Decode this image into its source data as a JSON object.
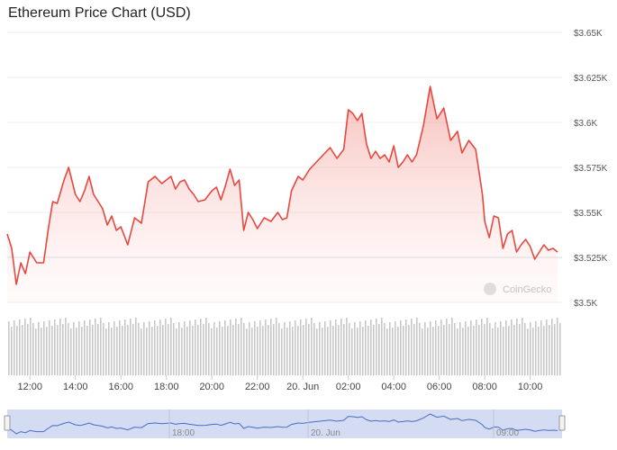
{
  "chart_data": {
    "type": "line",
    "title": "Ethereum Price Chart (USD)",
    "watermark": "CoinGecko",
    "y_ticks": [
      "$3.65K",
      "$3.625K",
      "$3.6K",
      "$3.575K",
      "$3.55K",
      "$3.525K",
      "$3.5K"
    ],
    "y_tick_values": [
      3650,
      3625,
      3600,
      3575,
      3550,
      3525,
      3500
    ],
    "ylim": [
      3500,
      3650
    ],
    "x_ticks": [
      "12:00",
      "14:00",
      "16:00",
      "18:00",
      "20:00",
      "22:00",
      "20. Jun",
      "02:00",
      "04:00",
      "06:00",
      "08:00",
      "10:00"
    ],
    "x_tick_hours": [
      0,
      2,
      4,
      6,
      8,
      10,
      12,
      14,
      16,
      18,
      20,
      22
    ],
    "xlim_hours": [
      -1,
      23.4
    ],
    "baseline": 3525,
    "line_color": "#e8473f",
    "volume_color": "#c8c8c8",
    "navigator_ticks": [
      "18:00",
      "20. Jun",
      "09:00"
    ],
    "navigator_line_color": "#4a6cc3",
    "navigator_bg": "#d3dcf2",
    "series": [
      {
        "x": [
          -1.0,
          -0.8,
          -0.6,
          -0.4,
          -0.2,
          0.0,
          0.3,
          0.6,
          0.8,
          1.0,
          1.2,
          1.5,
          1.7,
          2.0,
          2.2,
          2.4,
          2.6,
          2.8,
          3.0,
          3.2,
          3.4,
          3.6,
          3.8,
          4.0,
          4.3,
          4.6,
          4.9,
          5.2,
          5.5,
          5.8,
          6.0,
          6.2,
          6.4,
          6.6,
          6.8,
          7.0,
          7.2,
          7.4,
          7.7,
          8.0,
          8.2,
          8.4,
          8.6,
          8.8,
          9.0,
          9.2,
          9.4,
          9.6,
          9.8,
          10.0,
          10.3,
          10.6,
          10.9,
          11.1,
          11.3,
          11.5,
          11.8,
          12.0,
          12.3,
          12.6,
          12.9,
          13.2,
          13.5,
          13.8,
          14.0,
          14.2,
          14.4,
          14.6,
          14.8,
          15.0,
          15.2,
          15.4,
          15.6,
          15.8,
          16.0,
          16.2,
          16.4,
          16.6,
          16.8,
          17.0,
          17.3,
          17.6,
          17.9,
          18.2,
          18.5,
          18.8,
          19.0,
          19.3,
          19.6,
          19.9,
          20.0,
          20.2,
          20.4,
          20.6,
          20.8,
          21.0,
          21.2,
          21.4,
          21.6,
          21.8,
          22.0,
          22.2,
          22.4,
          22.6,
          22.8,
          23.0,
          23.2
        ],
        "y": [
          3538,
          3530,
          3510,
          3522,
          3516,
          3528,
          3522,
          3522,
          3540,
          3556,
          3555,
          3568,
          3575,
          3560,
          3556,
          3562,
          3570,
          3560,
          3556,
          3552,
          3543,
          3548,
          3540,
          3542,
          3532,
          3547,
          3544,
          3567,
          3570,
          3566,
          3568,
          3570,
          3563,
          3567,
          3568,
          3563,
          3560,
          3556,
          3557,
          3562,
          3564,
          3557,
          3565,
          3574,
          3565,
          3568,
          3540,
          3550,
          3546,
          3541,
          3547,
          3545,
          3550,
          3546,
          3547,
          3562,
          3570,
          3568,
          3574,
          3578,
          3582,
          3586,
          3580,
          3585,
          3607,
          3605,
          3601,
          3605,
          3588,
          3580,
          3584,
          3580,
          3582,
          3578,
          3587,
          3575,
          3578,
          3582,
          3578,
          3582,
          3598,
          3620,
          3602,
          3608,
          3590,
          3595,
          3583,
          3590,
          3585,
          3560,
          3545,
          3536,
          3548,
          3547,
          3530,
          3538,
          3540,
          3528,
          3532,
          3535,
          3531,
          3524,
          3528,
          3532,
          3529,
          3530,
          3528
        ]
      }
    ]
  }
}
